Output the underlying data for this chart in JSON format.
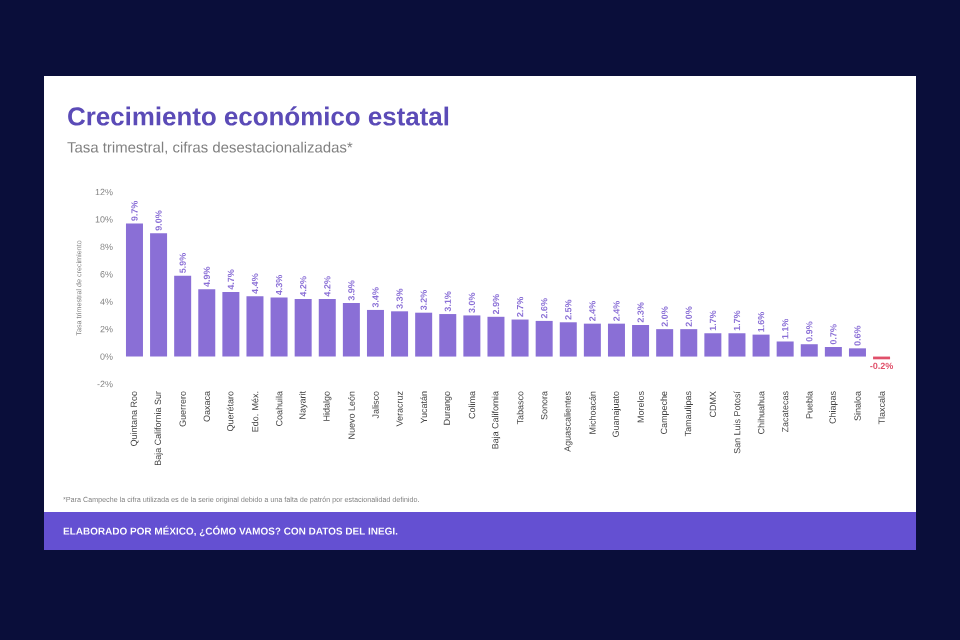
{
  "chart_data": {
    "type": "bar",
    "title": "Crecimiento económico estatal",
    "subtitle": "Tasa trimestral, cifras desestacionalizadas*",
    "ylabel": "Tasa trimestral de crecimiento",
    "categories": [
      "Quintana Roo",
      "Baja California Sur",
      "Guerrero",
      "Oaxaca",
      "Querétaro",
      "Edo. Méx.",
      "Coahuila",
      "Nayarit",
      "Hidalgo",
      "Nuevo León",
      "Jalisco",
      "Veracruz",
      "Yucatán",
      "Durango",
      "Colima",
      "Baja California",
      "Tabasco",
      "Sonora",
      "Aguascalientes",
      "Michoacán",
      "Guanajuato",
      "Morelos",
      "Campeche",
      "Tamaulipas",
      "CDMX",
      "San Luis Potosí",
      "Chihuahua",
      "Zacatecas",
      "Puebla",
      "Chiapas",
      "Sinaloa",
      "Tlaxcala"
    ],
    "values": [
      9.7,
      9.0,
      5.9,
      4.9,
      4.7,
      4.4,
      4.3,
      4.2,
      4.2,
      3.9,
      3.4,
      3.3,
      3.2,
      3.1,
      3.0,
      2.9,
      2.7,
      2.6,
      2.5,
      2.4,
      2.4,
      2.3,
      2.0,
      2.0,
      1.7,
      1.7,
      1.6,
      1.1,
      0.9,
      0.7,
      0.6,
      -0.2
    ],
    "value_labels": [
      "9.7%",
      "9.0%",
      "5.9%",
      "4.9%",
      "4.7%",
      "4.4%",
      "4.3%",
      "4.2%",
      "4.2%",
      "3.9%",
      "3.4%",
      "3.3%",
      "3.2%",
      "3.1%",
      "3.0%",
      "2.9%",
      "2.7%",
      "2.6%",
      "2.5%",
      "2.4%",
      "2.4%",
      "2.3%",
      "2.0%",
      "2.0%",
      "1.7%",
      "1.7%",
      "1.6%",
      "1.1%",
      "0.9%",
      "0.7%",
      "0.6%",
      "-0.2%"
    ],
    "colors": [
      "#8a6fd6",
      "#8a6fd6",
      "#8a6fd6",
      "#8a6fd6",
      "#8a6fd6",
      "#8a6fd6",
      "#8a6fd6",
      "#8a6fd6",
      "#8a6fd6",
      "#8a6fd6",
      "#8a6fd6",
      "#8a6fd6",
      "#8a6fd6",
      "#8a6fd6",
      "#8a6fd6",
      "#8a6fd6",
      "#8a6fd6",
      "#8a6fd6",
      "#8a6fd6",
      "#8a6fd6",
      "#8a6fd6",
      "#8a6fd6",
      "#8a6fd6",
      "#8a6fd6",
      "#8a6fd6",
      "#8a6fd6",
      "#8a6fd6",
      "#8a6fd6",
      "#8a6fd6",
      "#8a6fd6",
      "#8a6fd6",
      "#e0506a"
    ],
    "ylim": [
      -2,
      12
    ],
    "yticks": [
      {
        "value": -2,
        "label": "-2%"
      },
      {
        "value": 0,
        "label": "0%"
      },
      {
        "value": 2,
        "label": "2%"
      },
      {
        "value": 4,
        "label": "4%"
      },
      {
        "value": 6,
        "label": "6%"
      },
      {
        "value": 8,
        "label": "8%"
      },
      {
        "value": 10,
        "label": "10%"
      },
      {
        "value": 12,
        "label": "12%"
      }
    ],
    "annotations": [
      "*Para Campeche la cifra utilizada es de la serie original debido a una falta de patrón por estacionalidad definido.",
      "ELABORADO POR MÉXICO, ¿CÓMO VAMOS? CON DATOS DEL INEGI."
    ]
  }
}
